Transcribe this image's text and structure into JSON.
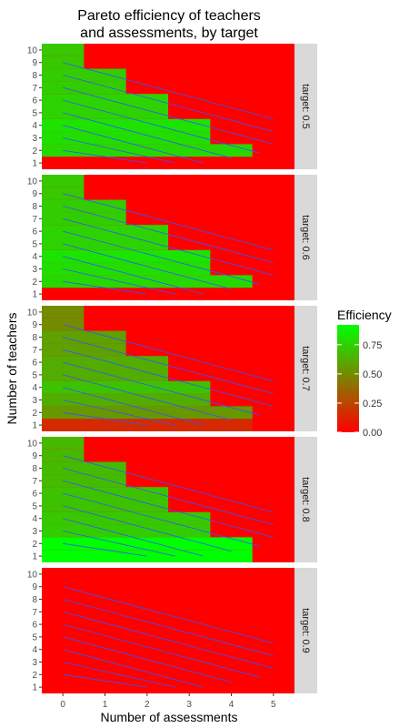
{
  "chart_data": {
    "type": "heatmap",
    "title": "Pareto efficiency of teachers\nand assessments, by target",
    "xlabel": "Number of assessments",
    "ylabel": "Number of teachers",
    "x_ticks": [
      0,
      1,
      2,
      3,
      4,
      5
    ],
    "y_ticks": [
      1,
      2,
      3,
      4,
      5,
      6,
      7,
      8,
      9,
      10
    ],
    "x_range": [
      -0.5,
      5.5
    ],
    "y_range": [
      0.5,
      10.5
    ],
    "facet_by": "target",
    "legend": {
      "title": "Efficiency",
      "breaks": [
        "0.75",
        "0.50",
        "0.25",
        "0.00"
      ],
      "break_values": [
        0.75,
        0.5,
        0.25,
        0.0
      ],
      "range": [
        0,
        0.92
      ],
      "low_color": "#FF0000",
      "high_color": "#00FF00",
      "position": "right"
    },
    "overlay": "diagonal blue contour lines",
    "line_color": "#3355FF",
    "panels": [
      {
        "label": "target: 0.5",
        "bands": [
          {
            "y": 1,
            "x_max": 4,
            "value": 0.0
          },
          {
            "y": 2,
            "x_max": 4,
            "value": 0.78
          },
          {
            "y": 3,
            "x_max": 3,
            "value": 0.8
          },
          {
            "y": 4,
            "x_max": 3,
            "value": 0.82
          },
          {
            "y": 5,
            "x_max": 2,
            "value": 0.76
          },
          {
            "y": 6,
            "x_max": 2,
            "value": 0.76
          },
          {
            "y": 7,
            "x_max": 1,
            "value": 0.74
          },
          {
            "y": 8,
            "x_max": 1,
            "value": 0.74
          },
          {
            "y": 9,
            "x_max": 0,
            "value": 0.72
          },
          {
            "y": 10,
            "x_max": 0,
            "value": 0.72
          }
        ]
      },
      {
        "label": "target: 0.6",
        "bands": [
          {
            "y": 1,
            "x_max": 4,
            "value": 0.0
          },
          {
            "y": 2,
            "x_max": 4,
            "value": 0.78
          },
          {
            "y": 3,
            "x_max": 3,
            "value": 0.8
          },
          {
            "y": 4,
            "x_max": 3,
            "value": 0.82
          },
          {
            "y": 5,
            "x_max": 2,
            "value": 0.76
          },
          {
            "y": 6,
            "x_max": 2,
            "value": 0.76
          },
          {
            "y": 7,
            "x_max": 1,
            "value": 0.74
          },
          {
            "y": 8,
            "x_max": 1,
            "value": 0.74
          },
          {
            "y": 9,
            "x_max": 0,
            "value": 0.72
          },
          {
            "y": 10,
            "x_max": 0,
            "value": 0.72
          }
        ]
      },
      {
        "label": "target: 0.7",
        "bands": [
          {
            "y": 1,
            "x_max": 4,
            "value": 0.15
          },
          {
            "y": 2,
            "x_max": 4,
            "value": 0.55
          },
          {
            "y": 3,
            "x_max": 3,
            "value": 0.62
          },
          {
            "y": 4,
            "x_max": 3,
            "value": 0.7
          },
          {
            "y": 5,
            "x_max": 2,
            "value": 0.62
          },
          {
            "y": 6,
            "x_max": 2,
            "value": 0.62
          },
          {
            "y": 7,
            "x_max": 1,
            "value": 0.58
          },
          {
            "y": 8,
            "x_max": 1,
            "value": 0.58
          },
          {
            "y": 9,
            "x_max": 0,
            "value": 0.5
          },
          {
            "y": 10,
            "x_max": 0,
            "value": 0.5
          }
        ]
      },
      {
        "label": "target: 0.8",
        "bands": [
          {
            "y": 1,
            "x_max": 4,
            "value": 0.92
          },
          {
            "y": 2,
            "x_max": 4,
            "value": 0.92
          },
          {
            "y": 3,
            "x_max": 3,
            "value": 0.74
          },
          {
            "y": 4,
            "x_max": 3,
            "value": 0.72
          },
          {
            "y": 5,
            "x_max": 2,
            "value": 0.7
          },
          {
            "y": 6,
            "x_max": 2,
            "value": 0.7
          },
          {
            "y": 7,
            "x_max": 1,
            "value": 0.68
          },
          {
            "y": 8,
            "x_max": 1,
            "value": 0.68
          },
          {
            "y": 9,
            "x_max": 0,
            "value": 0.66
          },
          {
            "y": 10,
            "x_max": 0,
            "value": 0.66
          }
        ]
      },
      {
        "label": "target: 0.9",
        "bands": []
      }
    ]
  }
}
